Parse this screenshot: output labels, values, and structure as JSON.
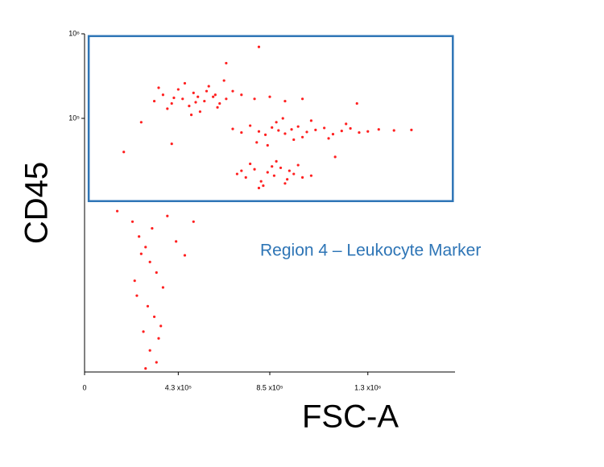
{
  "chart_data": {
    "type": "scatter",
    "x_label": "FSC-A",
    "y_label": "CD45",
    "color": "#ff2020",
    "xlim": [
      0,
      1700000
    ],
    "ylim": [
      100,
      1000000
    ],
    "y_log": true,
    "xticks": [
      0,
      {
        "value": 430000,
        "label": "4.3 x10⁵"
      },
      {
        "value": 850000,
        "label": "8.5 x10⁵"
      },
      {
        "value": 1300000,
        "label": "1.3 x10⁶"
      }
    ],
    "yticks": [
      {
        "value": 100000,
        "label": "10⁵"
      },
      {
        "value": 1000000,
        "label": "10⁶"
      }
    ],
    "region": {
      "label": "Region 4 – Leukocyte Marker",
      "color": "#2e75b6",
      "xlim": [
        19000,
        1690000
      ],
      "ylim": [
        10500,
        940000
      ]
    },
    "x": [
      320000,
      360000,
      400000,
      430000,
      450000,
      480000,
      500000,
      520000,
      550000,
      570000,
      600000,
      620000,
      650000,
      680000,
      380000,
      460000,
      530000,
      590000,
      410000,
      720000,
      780000,
      850000,
      920000,
      340000,
      510000,
      640000,
      490000,
      560000,
      610000,
      1000000,
      680000,
      720000,
      760000,
      800000,
      830000,
      860000,
      890000,
      920000,
      950000,
      980000,
      1020000,
      1060000,
      1100000,
      1140000,
      1180000,
      1220000,
      1260000,
      1300000,
      1350000,
      1420000,
      790000,
      880000,
      960000,
      1040000,
      1120000,
      1200000,
      840000,
      910000,
      1000000,
      1500000,
      700000,
      740000,
      780000,
      810000,
      840000,
      870000,
      900000,
      930000,
      960000,
      1000000,
      760000,
      820000,
      880000,
      940000,
      1040000,
      800000,
      860000,
      920000,
      720000,
      980000,
      220000,
      250000,
      280000,
      300000,
      330000,
      360000,
      240000,
      290000,
      320000,
      350000,
      260000,
      310000,
      340000,
      230000,
      270000,
      380000,
      420000,
      300000,
      330000,
      280000,
      180000,
      260000,
      400000,
      650000,
      150000,
      1150000,
      1250000,
      500000,
      460000,
      800000
    ],
    "values": [
      160000,
      190000,
      150000,
      220000,
      170000,
      140000,
      200000,
      180000,
      160000,
      240000,
      190000,
      150000,
      170000,
      210000,
      130000,
      260000,
      120000,
      180000,
      175000,
      190000,
      170000,
      180000,
      160000,
      230000,
      155000,
      280000,
      110000,
      210000,
      135000,
      170000,
      75000,
      68000,
      82000,
      70000,
      64000,
      78000,
      72000,
      66000,
      74000,
      80000,
      69000,
      73000,
      77000,
      65000,
      71000,
      76000,
      68000,
      70000,
      74000,
      72000,
      52000,
      90000,
      56000,
      94000,
      58000,
      86000,
      48000,
      100000,
      60000,
      73000,
      22000,
      20000,
      25000,
      18000,
      23000,
      21000,
      26000,
      19000,
      22000,
      20000,
      29000,
      16000,
      31000,
      24000,
      21000,
      15000,
      27000,
      17000,
      24000,
      28000,
      6000,
      4000,
      3000,
      2000,
      1500,
      1000,
      800,
      600,
      450,
      350,
      2500,
      5000,
      250,
      1200,
      300,
      7000,
      3500,
      180,
      130,
      110,
      40000,
      90000,
      50000,
      450000,
      8000,
      35000,
      150000,
      6000,
      2400,
      700000
    ]
  }
}
